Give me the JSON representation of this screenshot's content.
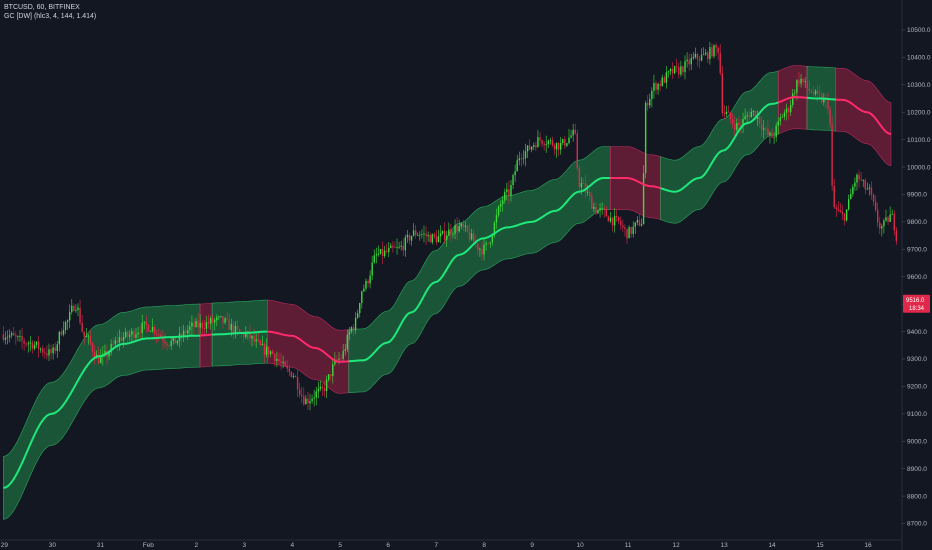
{
  "header": {
    "symbol_line": "BTCUSD, 60, BITFINEX",
    "indicator_line": "GC [DW] (hlc3, 4, 144, 1.414)"
  },
  "colors": {
    "background": "#131722",
    "bull": "#3ddc3d",
    "bear": "#e0284a",
    "band_bull": "#1d6b3f",
    "band_bear": "#7a1f3c",
    "centerline_bull": "#1ee87a",
    "centerline_bear": "#ff2a6a",
    "axis_text": "#b2b5be"
  },
  "price_badge": {
    "price": "9516.0",
    "countdown": "18:34"
  },
  "chart_data": {
    "type": "candlestick",
    "title": "BTCUSD, 60, BITFINEX",
    "indicator": "GC [DW] (hlc3, 4, 144, 1.414)",
    "ylim": [
      8640,
      10580
    ],
    "y_ticks": [
      8700,
      8800,
      8900,
      9000,
      9100,
      9200,
      9300,
      9400,
      9500,
      9600,
      9700,
      9800,
      9900,
      10000,
      10100,
      10200,
      10300,
      10400,
      10500
    ],
    "y_tick_labels": [
      "8700.0",
      "8800.0",
      "8900.0",
      "9000.0",
      "9100.0",
      "9200.0",
      "9300.0",
      "9400.0",
      "9500.0",
      "9600.0",
      "9700.0",
      "9800.0",
      "9900.0",
      "10000.0",
      "10100.0",
      "10200.0",
      "10300.0",
      "10400.0",
      "10500.0"
    ],
    "xlim_days": [
      -0.05,
      18.5
    ],
    "x_ticks": [
      {
        "day": 0,
        "label": "29"
      },
      {
        "day": 1,
        "label": "30"
      },
      {
        "day": 2,
        "label": "31"
      },
      {
        "day": 3,
        "label": "Feb"
      },
      {
        "day": 4,
        "label": "2"
      },
      {
        "day": 5,
        "label": "3"
      },
      {
        "day": 6,
        "label": "4"
      },
      {
        "day": 7,
        "label": "5"
      },
      {
        "day": 8,
        "label": "6"
      },
      {
        "day": 9,
        "label": "7"
      },
      {
        "day": 10,
        "label": "8"
      },
      {
        "day": 11,
        "label": "9"
      },
      {
        "day": 12,
        "label": "10"
      },
      {
        "day": 13,
        "label": "11"
      },
      {
        "day": 14,
        "label": "12"
      },
      {
        "day": 15,
        "label": "13"
      },
      {
        "day": 16,
        "label": "14"
      },
      {
        "day": 17,
        "label": "15"
      },
      {
        "day": 18,
        "label": "16"
      }
    ],
    "centerline": [
      [
        0.0,
        8830
      ],
      [
        1.0,
        9100
      ],
      [
        2.0,
        9310
      ],
      [
        2.5,
        9355
      ],
      [
        3.0,
        9375
      ],
      [
        3.5,
        9380
      ],
      [
        4.0,
        9385
      ],
      [
        4.5,
        9390
      ],
      [
        5.0,
        9395
      ],
      [
        5.5,
        9400
      ],
      [
        6.0,
        9385
      ],
      [
        6.5,
        9340
      ],
      [
        7.0,
        9290
      ],
      [
        7.5,
        9295
      ],
      [
        8.0,
        9360
      ],
      [
        8.5,
        9470
      ],
      [
        9.0,
        9580
      ],
      [
        9.5,
        9680
      ],
      [
        10.0,
        9740
      ],
      [
        10.5,
        9780
      ],
      [
        11.0,
        9800
      ],
      [
        11.5,
        9840
      ],
      [
        12.0,
        9910
      ],
      [
        12.5,
        9960
      ],
      [
        13.0,
        9960
      ],
      [
        13.5,
        9930
      ],
      [
        14.0,
        9910
      ],
      [
        14.5,
        9960
      ],
      [
        15.0,
        10060
      ],
      [
        15.5,
        10160
      ],
      [
        16.0,
        10230
      ],
      [
        16.5,
        10255
      ],
      [
        17.0,
        10250
      ],
      [
        17.5,
        10245
      ],
      [
        18.0,
        10200
      ],
      [
        18.5,
        10120
      ]
    ],
    "band_offset": 115,
    "band_segments": [
      {
        "from": 0.0,
        "to": 4.1,
        "trend": "bull"
      },
      {
        "from": 4.1,
        "to": 4.35,
        "trend": "bear"
      },
      {
        "from": 4.35,
        "to": 5.5,
        "trend": "bull"
      },
      {
        "from": 5.5,
        "to": 7.2,
        "trend": "bear"
      },
      {
        "from": 7.2,
        "to": 12.65,
        "trend": "bull"
      },
      {
        "from": 12.65,
        "to": 13.7,
        "trend": "bear"
      },
      {
        "from": 13.7,
        "to": 16.15,
        "trend": "bull"
      },
      {
        "from": 16.15,
        "to": 16.75,
        "trend": "bear"
      },
      {
        "from": 16.75,
        "to": 17.35,
        "trend": "bull"
      },
      {
        "from": 17.35,
        "to": 18.5,
        "trend": "bear"
      }
    ],
    "price_path": [
      [
        0.0,
        9390
      ],
      [
        0.5,
        9360
      ],
      [
        1.0,
        9320
      ],
      [
        1.3,
        9430
      ],
      [
        1.5,
        9500
      ],
      [
        1.7,
        9380
      ],
      [
        2.0,
        9300
      ],
      [
        2.5,
        9380
      ],
      [
        3.0,
        9420
      ],
      [
        3.5,
        9360
      ],
      [
        4.0,
        9420
      ],
      [
        4.5,
        9440
      ],
      [
        5.0,
        9390
      ],
      [
        5.5,
        9330
      ],
      [
        6.0,
        9250
      ],
      [
        6.3,
        9150
      ],
      [
        6.6,
        9180
      ],
      [
        7.0,
        9300
      ],
      [
        7.3,
        9420
      ],
      [
        7.5,
        9560
      ],
      [
        7.8,
        9680
      ],
      [
        8.2,
        9700
      ],
      [
        8.6,
        9760
      ],
      [
        9.0,
        9740
      ],
      [
        9.5,
        9780
      ],
      [
        10.0,
        9700
      ],
      [
        10.5,
        9900
      ],
      [
        10.8,
        10050
      ],
      [
        11.2,
        10100
      ],
      [
        11.6,
        10080
      ],
      [
        11.9,
        10120
      ],
      [
        12.0,
        9940
      ],
      [
        12.4,
        9840
      ],
      [
        12.8,
        9800
      ],
      [
        13.0,
        9760
      ],
      [
        13.3,
        9800
      ],
      [
        13.4,
        10240
      ],
      [
        13.6,
        10300
      ],
      [
        14.0,
        10350
      ],
      [
        14.5,
        10400
      ],
      [
        14.9,
        10430
      ],
      [
        15.0,
        10200
      ],
      [
        15.3,
        10150
      ],
      [
        15.6,
        10200
      ],
      [
        16.0,
        10110
      ],
      [
        16.3,
        10200
      ],
      [
        16.6,
        10320
      ],
      [
        16.8,
        10280
      ],
      [
        17.0,
        10250
      ],
      [
        17.2,
        10230
      ],
      [
        17.3,
        9850
      ],
      [
        17.5,
        9820
      ],
      [
        17.8,
        9960
      ],
      [
        18.0,
        9920
      ],
      [
        18.3,
        9780
      ],
      [
        18.5,
        9820
      ],
      [
        18.7,
        9700
      ],
      [
        18.9,
        9560
      ],
      [
        19.2,
        9516
      ]
    ],
    "price_noise": 40
  }
}
